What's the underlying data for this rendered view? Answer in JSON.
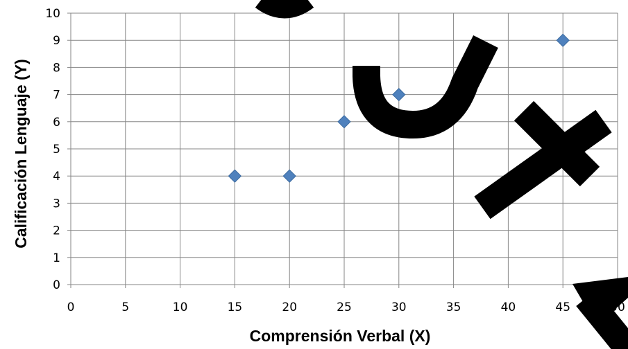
{
  "chart_data": {
    "type": "scatter",
    "xlabel": "Comprensión Verbal (X)",
    "ylabel": "Calificación Lenguaje (Y)",
    "xlim": [
      0,
      50
    ],
    "ylim": [
      0,
      10
    ],
    "x_ticks": [
      "0",
      "5",
      "10",
      "15",
      "20",
      "25",
      "30",
      "35",
      "40",
      "45",
      "50"
    ],
    "y_ticks": [
      "0",
      "1",
      "2",
      "3",
      "4",
      "5",
      "6",
      "7",
      "8",
      "9",
      "10"
    ],
    "grid": true,
    "legend": "none",
    "marker": "diamond",
    "marker_color": "#4F81BD",
    "watermark_color": "#000000",
    "series": [
      {
        "points": [
          {
            "x": 15,
            "y": 4
          },
          {
            "x": 20,
            "y": 4
          },
          {
            "x": 25,
            "y": 6
          },
          {
            "x": 30,
            "y": 7
          },
          {
            "x": 45,
            "y": 9
          }
        ]
      }
    ]
  }
}
